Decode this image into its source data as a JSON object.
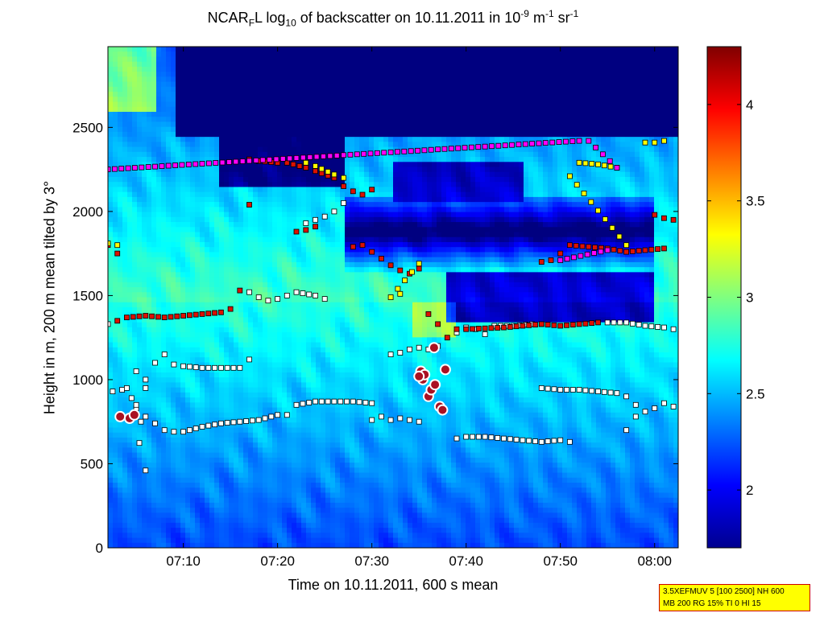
{
  "title": {
    "prefix": "NCAR",
    "sub1": "F",
    "mid": "L log",
    "sub2": "10",
    "rest": " of backscatter on 10.11.2011 in 10",
    "sup1": "-9",
    "unit1": " m",
    "sup2": "-1",
    "unit2": " sr",
    "sup3": "-1"
  },
  "info_box": {
    "line1": "3.5XEFMUV 5 [100 2500] NH 600",
    "line2": "MB 200 RG 15% TI 0 HI 15"
  },
  "colors": {
    "colormap": "jet",
    "marker_white": "#ffffff",
    "marker_red": "#dd1100",
    "marker_yellow": "#ffff00",
    "marker_magenta": "#ff00ff",
    "circle_fill": "#aa1122",
    "circle_ring": "#ffffff"
  },
  "chart_data": {
    "type": "heatmap",
    "xlabel": "Time on 10.11.2011, 600 s mean",
    "ylabel": "Height in m, 200 m mean tilted by 3°",
    "x_ticks": [
      "07:10",
      "07:20",
      "07:30",
      "07:40",
      "07:50",
      "08:00"
    ],
    "x_tick_minutes": [
      430,
      440,
      450,
      460,
      470,
      480
    ],
    "xlim_minutes": [
      422,
      482.5
    ],
    "y_ticks": [
      0,
      500,
      1000,
      1500,
      2000,
      2500
    ],
    "ylim": [
      0,
      2980
    ],
    "colorbar": {
      "ticks": [
        2,
        2.5,
        3,
        3.5,
        4
      ],
      "range": [
        1.7,
        4.3
      ],
      "colormap": "jet"
    },
    "layer_series": {
      "white_squares": [
        [
          [
            422.5,
            930
          ],
          [
            423.5,
            940
          ],
          [
            424.5,
            890
          ],
          [
            425,
            830
          ],
          [
            425.5,
            750
          ],
          [
            426,
            950
          ],
          [
            427,
            1100
          ],
          [
            428,
            1150
          ],
          [
            429,
            1090
          ],
          [
            430,
            1080
          ],
          [
            432,
            1070
          ],
          [
            434,
            1070
          ],
          [
            436,
            1070
          ],
          [
            437,
            1120
          ]
        ],
        [
          [
            425,
            850
          ],
          [
            426,
            780
          ],
          [
            427,
            740
          ],
          [
            428,
            700
          ],
          [
            429,
            690
          ],
          [
            430,
            690
          ],
          [
            432,
            720
          ],
          [
            434,
            740
          ],
          [
            436,
            750
          ],
          [
            438,
            760
          ],
          [
            440,
            790
          ],
          [
            441,
            790
          ],
          [
            442,
            850
          ],
          [
            444,
            870
          ],
          [
            446,
            870
          ],
          [
            448,
            870
          ],
          [
            450,
            860
          ]
        ],
        [
          [
            450,
            760
          ],
          [
            451,
            780
          ],
          [
            452,
            760
          ],
          [
            453,
            770
          ],
          [
            454,
            760
          ],
          [
            455,
            750
          ]
        ],
        [
          [
            459,
            650
          ],
          [
            460,
            660
          ],
          [
            462,
            660
          ],
          [
            464,
            650
          ],
          [
            466,
            640
          ],
          [
            468,
            630
          ],
          [
            470,
            640
          ],
          [
            471,
            630
          ]
        ],
        [
          [
            468,
            950
          ],
          [
            470,
            940
          ],
          [
            472,
            940
          ],
          [
            474,
            930
          ],
          [
            476,
            920
          ],
          [
            477,
            900
          ],
          [
            478,
            850
          ]
        ],
        [
          [
            477,
            700
          ],
          [
            478,
            780
          ],
          [
            479,
            810
          ],
          [
            480,
            830
          ],
          [
            481,
            860
          ],
          [
            482,
            840
          ]
        ],
        [
          [
            452,
            1150
          ],
          [
            453,
            1160
          ],
          [
            454,
            1180
          ],
          [
            455,
            1190
          ],
          [
            456,
            1180
          ],
          [
            457,
            1200
          ]
        ],
        [
          [
            459,
            1280
          ],
          [
            460,
            1310
          ],
          [
            461,
            1300
          ],
          [
            462,
            1270
          ],
          [
            463,
            1320
          ],
          [
            465,
            1320
          ],
          [
            467,
            1330
          ],
          [
            468,
            1330
          ]
        ],
        [
          [
            475,
            1340
          ],
          [
            477,
            1340
          ],
          [
            479,
            1320
          ],
          [
            481,
            1310
          ],
          [
            482,
            1300
          ]
        ],
        [
          [
            425,
            1050
          ],
          [
            426,
            1000
          ],
          [
            424,
            950
          ],
          [
            426,
            460
          ]
        ],
        [
          [
            437,
            1520
          ],
          [
            438,
            1490
          ],
          [
            439,
            1470
          ],
          [
            440,
            1480
          ],
          [
            441,
            1500
          ],
          [
            442,
            1520
          ],
          [
            444,
            1500
          ],
          [
            445,
            1480
          ]
        ],
        [
          [
            443,
            1930
          ],
          [
            444,
            1950
          ],
          [
            445,
            1970
          ],
          [
            446,
            2000
          ],
          [
            447,
            2050
          ]
        ],
        [
          [
            421.5,
            1320
          ],
          [
            422,
            1330
          ]
        ]
      ],
      "red_squares": [
        [
          [
            423,
            1350
          ],
          [
            424,
            1370
          ],
          [
            426,
            1380
          ],
          [
            428,
            1370
          ],
          [
            430,
            1380
          ],
          [
            432,
            1390
          ],
          [
            434,
            1400
          ],
          [
            435,
            1420
          ]
        ],
        [
          [
            437,
            2310
          ],
          [
            438,
            2300
          ],
          [
            440,
            2290
          ],
          [
            441,
            2290
          ],
          [
            443,
            2260
          ],
          [
            444,
            2240
          ],
          [
            446,
            2200
          ],
          [
            447,
            2150
          ],
          [
            448,
            2120
          ],
          [
            449,
            2100
          ],
          [
            450,
            2130
          ]
        ],
        [
          [
            448,
            1790
          ],
          [
            449,
            1800
          ],
          [
            450,
            1760
          ],
          [
            451,
            1720
          ],
          [
            452,
            1680
          ],
          [
            453,
            1650
          ],
          [
            454,
            1630
          ],
          [
            455,
            1660
          ]
        ],
        [
          [
            456,
            1390
          ],
          [
            457,
            1330
          ],
          [
            458,
            1250
          ],
          [
            459,
            1300
          ],
          [
            460,
            1300
          ],
          [
            464,
            1310
          ],
          [
            466,
            1320
          ],
          [
            468,
            1330
          ],
          [
            470,
            1320
          ],
          [
            472,
            1330
          ],
          [
            474,
            1340
          ]
        ],
        [
          [
            468,
            1700
          ],
          [
            469,
            1710
          ],
          [
            470,
            1750
          ],
          [
            471,
            1800
          ],
          [
            473,
            1790
          ],
          [
            475,
            1780
          ],
          [
            477,
            1760
          ],
          [
            479,
            1770
          ],
          [
            481,
            1780
          ]
        ],
        [
          [
            480,
            1980
          ],
          [
            481,
            1960
          ],
          [
            482,
            1950
          ]
        ],
        [
          [
            442,
            1880
          ],
          [
            443,
            1890
          ],
          [
            444,
            1910
          ],
          [
            437,
            2040
          ],
          [
            436,
            1530
          ]
        ],
        [
          [
            422,
            1800
          ],
          [
            423,
            1750
          ]
        ]
      ],
      "yellow_squares": [
        [
          [
            422,
            1810
          ],
          [
            423,
            1800
          ]
        ],
        [
          [
            443,
            2290
          ],
          [
            444,
            2270
          ],
          [
            446,
            2220
          ],
          [
            447,
            2200
          ]
        ],
        [
          [
            453,
            1510
          ],
          [
            452,
            1490
          ],
          [
            455,
            1690
          ]
        ],
        [
          [
            472,
            2290
          ],
          [
            474,
            2280
          ],
          [
            476,
            2260
          ]
        ],
        [
          [
            479,
            2410
          ],
          [
            480,
            2410
          ],
          [
            481,
            2420
          ]
        ],
        [
          [
            471,
            2210
          ],
          [
            477,
            1800
          ]
        ]
      ],
      "magenta_squares": [
        [
          [
            422,
            2250
          ],
          [
            472,
            2420
          ],
          [
            473,
            2420
          ],
          [
            476,
            2260
          ],
          [
            470,
            1710
          ],
          [
            475,
            1770
          ]
        ]
      ]
    },
    "circle_markers": [
      [
        423.3,
        780
      ],
      [
        424.3,
        770
      ],
      [
        424.8,
        790
      ],
      [
        455.2,
        1050
      ],
      [
        455.4,
        1000
      ],
      [
        455.6,
        1030
      ],
      [
        456,
        900
      ],
      [
        456.3,
        940
      ],
      [
        456.6,
        1190
      ],
      [
        457.2,
        840
      ],
      [
        457.5,
        820
      ],
      [
        457.8,
        1060
      ],
      [
        455,
        1020
      ],
      [
        456.7,
        970
      ]
    ]
  }
}
